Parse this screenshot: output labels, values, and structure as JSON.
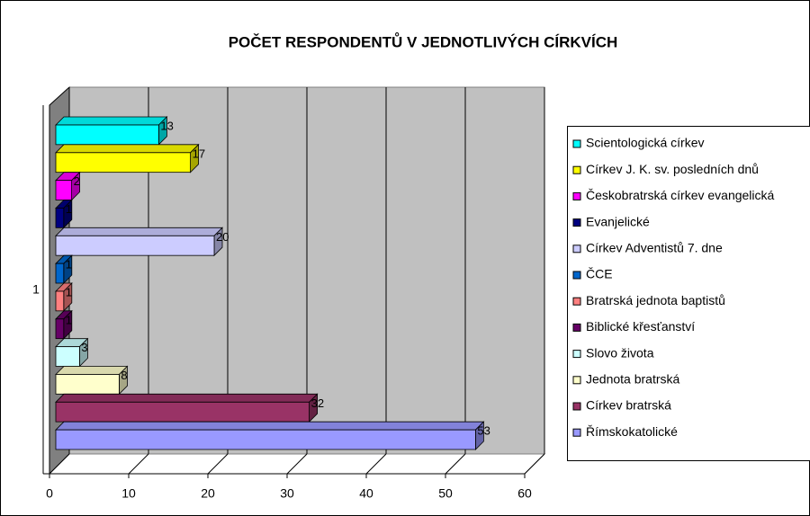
{
  "chart_data": {
    "type": "bar3d_horizontal",
    "title": "POČET RESPONDENTŮ V JEDNOTLIVÝCH CÍRKVÍCH",
    "categories": [
      "1"
    ],
    "series": [
      {
        "name": "Římskokatolické",
        "color": "#9999ff",
        "values": [
          53
        ]
      },
      {
        "name": "Církev bratrská",
        "color": "#993366",
        "values": [
          32
        ]
      },
      {
        "name": "Jednota bratrská",
        "color": "#ffffcc",
        "values": [
          8
        ]
      },
      {
        "name": "Slovo života",
        "color": "#ccffff",
        "values": [
          3
        ]
      },
      {
        "name": "Biblické křesťanství",
        "color": "#660066",
        "values": [
          1
        ]
      },
      {
        "name": "Bratrská jednota baptistů",
        "color": "#ff8080",
        "values": [
          1
        ]
      },
      {
        "name": "ČCE",
        "color": "#0066cc",
        "values": [
          1
        ]
      },
      {
        "name": "Církev Adventistů 7. dne",
        "color": "#ccccff",
        "values": [
          20
        ]
      },
      {
        "name": "Evanjelické",
        "color": "#000080",
        "values": [
          1
        ]
      },
      {
        "name": "Českobratrská církev evangelická",
        "color": "#ff00ff",
        "values": [
          2
        ]
      },
      {
        "name": "Církev J. K. sv. posledních dnů",
        "color": "#ffff00",
        "values": [
          17
        ]
      },
      {
        "name": "Scientologická církev",
        "color": "#00ffff",
        "values": [
          13
        ]
      }
    ],
    "xlim": [
      0,
      60
    ],
    "xticks": [
      0,
      10,
      20,
      30,
      40,
      50,
      60
    ],
    "grid": true,
    "legend": "right"
  }
}
